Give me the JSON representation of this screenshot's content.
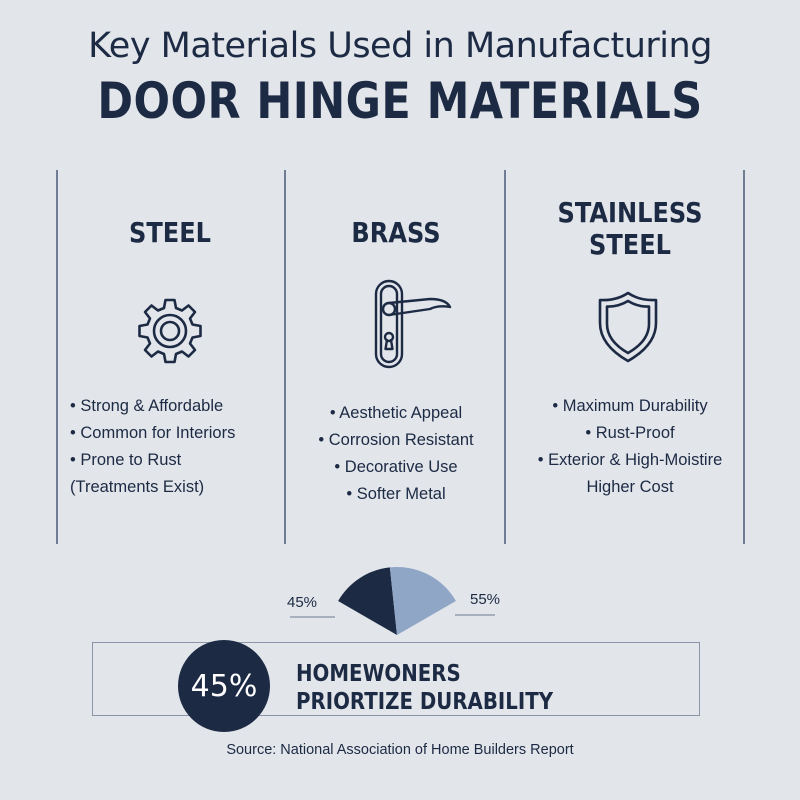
{
  "header": {
    "subtitle": "Key Materials Used in Manufacturing",
    "title": "DOOR HINGE MATERIALS"
  },
  "columns": [
    {
      "name_lines": [
        "STEEL"
      ],
      "icon": "gear-icon",
      "points": [
        "• Strong & Affordable",
        "• Common for Interiors",
        "• Prone to Rust",
        "(Treatments Exist)"
      ]
    },
    {
      "name_lines": [
        "BRASS"
      ],
      "icon": "door-handle-icon",
      "points": [
        "• Aesthetic Appeal",
        "• Corrosion Resistant",
        "• Decorative Use",
        "• Softer Metal"
      ]
    },
    {
      "name_lines": [
        "STAINLESS",
        "STEEL"
      ],
      "icon": "shield-icon",
      "points": [
        "• Maximum Durability",
        "• Rust-Proof",
        "• Exterior & High-Moistire",
        "Higher Cost"
      ]
    }
  ],
  "chart_data": {
    "type": "pie",
    "slices": [
      {
        "label": "45%",
        "value": 45,
        "color": "#1c2a44"
      },
      {
        "label": "55%",
        "value": 55,
        "color": "#8fa6c6"
      }
    ]
  },
  "stat": {
    "value": "45%",
    "line1": "HOMEWONERS",
    "line2": "PRIORTIZE DURABILITY"
  },
  "source": "Source: National Association of Home Builders Report",
  "colors": {
    "background": "#e2e5ea",
    "navy": "#1c2a44",
    "light_blue": "#8fa6c6"
  }
}
